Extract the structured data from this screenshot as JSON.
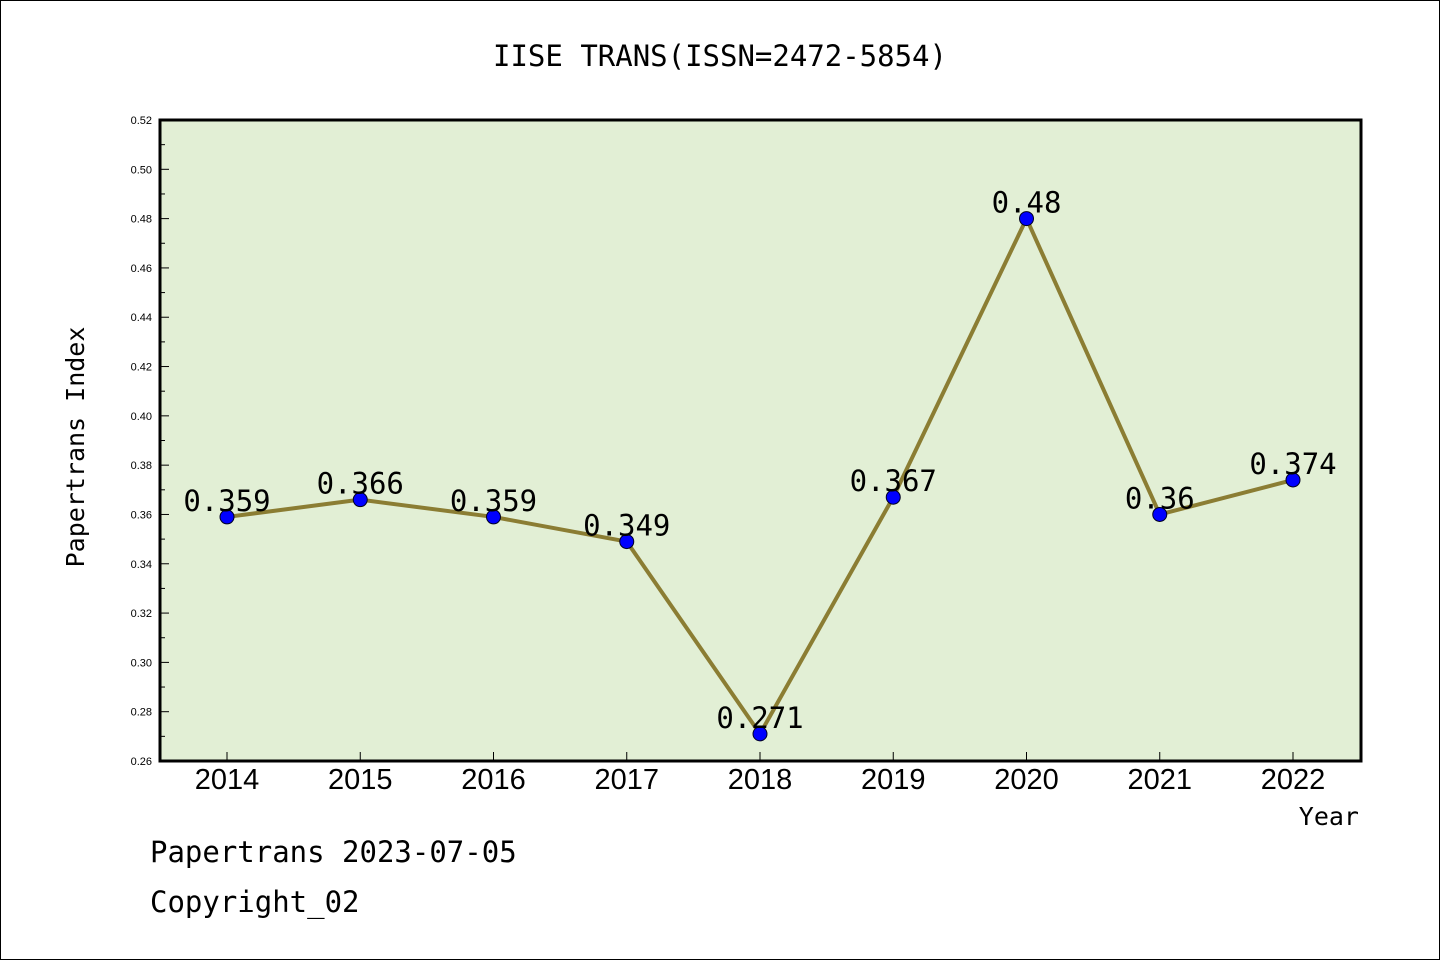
{
  "chart_data": {
    "type": "line",
    "title": "IISE TRANS(ISSN=2472-5854)",
    "xlabel": "Year",
    "ylabel": "Papertrans Index",
    "categories": [
      "2014",
      "2015",
      "2016",
      "2017",
      "2018",
      "2019",
      "2020",
      "2021",
      "2022"
    ],
    "values": [
      0.359,
      0.366,
      0.359,
      0.349,
      0.271,
      0.367,
      0.48,
      0.36,
      0.374
    ],
    "data_labels": [
      "0.359",
      "0.366",
      "0.359",
      "0.349",
      "0.271",
      "0.367",
      "0.48",
      "0.36",
      "0.374"
    ],
    "ylim": [
      0.26,
      0.52
    ],
    "yticks": [
      "0.26",
      "0.28",
      "0.30",
      "0.32",
      "0.34",
      "0.36",
      "0.38",
      "0.40",
      "0.42",
      "0.44",
      "0.46",
      "0.48",
      "0.50",
      "0.52"
    ],
    "grid": false,
    "legend": "none",
    "colors": {
      "plot_background": "#e2efd5",
      "line": "#8b7d33",
      "marker": "#0000ff"
    }
  },
  "footer": {
    "line1": "Papertrans 2023-07-05",
    "line2": "Copyright_02"
  }
}
